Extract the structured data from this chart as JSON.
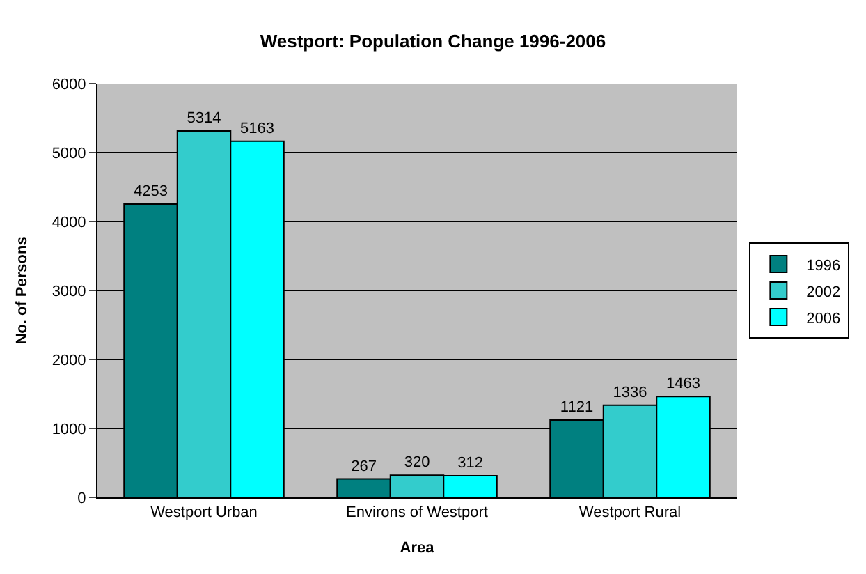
{
  "chart_data": {
    "type": "bar",
    "title": "Westport: Population Change 1996-2006",
    "xlabel": "Area",
    "ylabel": "No. of Persons",
    "categories": [
      "Westport Urban",
      "Environs of Westport",
      "Westport Rural"
    ],
    "series": [
      {
        "name": "1996",
        "color": "#008080",
        "values": [
          4253,
          267,
          1121
        ]
      },
      {
        "name": "2002",
        "color": "#33cccc",
        "values": [
          5314,
          320,
          1336
        ]
      },
      {
        "name": "2006",
        "color": "#00ffff",
        "values": [
          5163,
          312,
          1463
        ]
      }
    ],
    "ylim": [
      0,
      6000
    ],
    "yticks": [
      0,
      1000,
      2000,
      3000,
      4000,
      5000,
      6000
    ],
    "grid": "y",
    "legend": "right",
    "data_labels": true
  }
}
